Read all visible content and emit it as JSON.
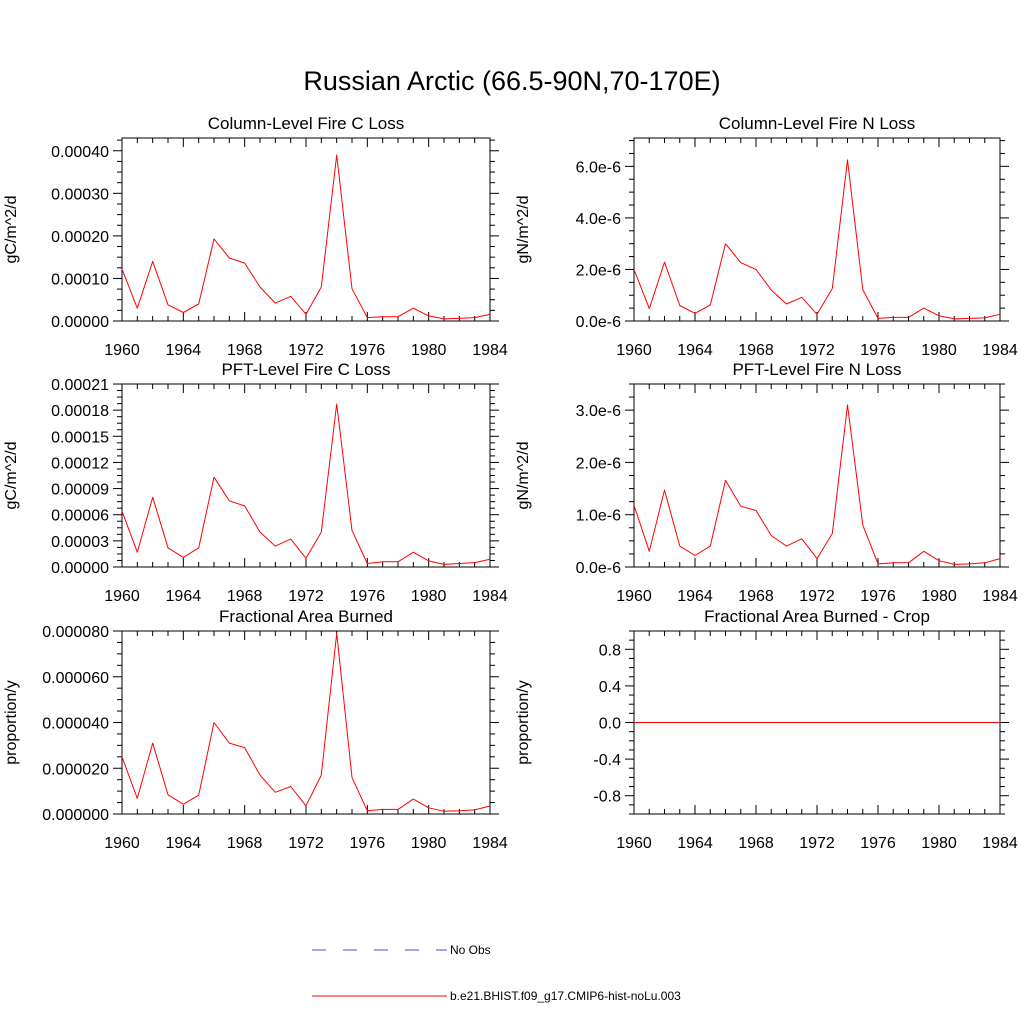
{
  "figure": {
    "title": "Russian Arctic (66.5-90N,70-170E)"
  },
  "colors": {
    "model": "#ff0000",
    "obs": "#4a4ad0",
    "axes": "#000000"
  },
  "legend": {
    "entries": [
      {
        "label": "No Obs",
        "style": "dashed",
        "color": "#4a4ad0"
      },
      {
        "label": "b.e21.BHIST.f09_g17.CMIP6-hist-noLu.003",
        "style": "solid",
        "color": "#ff0000"
      }
    ]
  },
  "chart_data": [
    {
      "type": "line",
      "title": "Column-Level Fire C Loss",
      "xlabel": "",
      "ylabel": "gC/m^2/d",
      "xlim": [
        1960,
        1984
      ],
      "ylim": [
        0,
        0.00043
      ],
      "x_ticks": [
        "1960",
        "1964",
        "1968",
        "1972",
        "1976",
        "1980",
        "1984"
      ],
      "y_ticks": [
        {
          "value": 0.0,
          "label": "0.00000"
        },
        {
          "value": 0.0001,
          "label": "0.00010"
        },
        {
          "value": 0.0002,
          "label": "0.00020"
        },
        {
          "value": 0.0003,
          "label": "0.00030"
        },
        {
          "value": 0.0004,
          "label": "0.00040"
        }
      ],
      "series": [
        {
          "name": "b.e21.BHIST.f09_g17.CMIP6-hist-noLu.003",
          "x": [
            1960,
            1961,
            1962,
            1963,
            1964,
            1965,
            1966,
            1967,
            1968,
            1969,
            1970,
            1971,
            1972,
            1973,
            1974,
            1975,
            1976,
            1977,
            1978,
            1979,
            1980,
            1981,
            1982,
            1983,
            1984
          ],
          "values": [
            0.000122,
            3e-05,
            0.00014,
            3.8e-05,
            2e-05,
            4e-05,
            0.000193,
            0.000148,
            0.000136,
            8e-05,
            4.2e-05,
            5.8e-05,
            1.6e-05,
            8e-05,
            0.00039,
            7.6e-05,
            8e-06,
            1e-05,
            1e-05,
            3e-05,
            1.2e-05,
            5e-06,
            6e-06,
            8e-06,
            1.6e-05
          ]
        }
      ]
    },
    {
      "type": "line",
      "title": "Column-Level Fire N Loss",
      "xlabel": "",
      "ylabel": "gN/m^2/d",
      "xlim": [
        1960,
        1984
      ],
      "ylim": [
        0,
        7.1e-06
      ],
      "x_ticks": [
        "1960",
        "1964",
        "1968",
        "1972",
        "1976",
        "1980",
        "1984"
      ],
      "y_ticks": [
        {
          "value": 0.0,
          "label": "0.0e-6"
        },
        {
          "value": 2e-06,
          "label": "2.0e-6"
        },
        {
          "value": 4e-06,
          "label": "4.0e-6"
        },
        {
          "value": 6e-06,
          "label": "6.0e-6"
        }
      ],
      "series": [
        {
          "name": "b.e21.BHIST.f09_g17.CMIP6-hist-noLu.003",
          "x": [
            1960,
            1961,
            1962,
            1963,
            1964,
            1965,
            1966,
            1967,
            1968,
            1969,
            1970,
            1971,
            1972,
            1973,
            1974,
            1975,
            1976,
            1977,
            1978,
            1979,
            1980,
            1981,
            1982,
            1983,
            1984
          ],
          "values": [
            2e-06,
            4.8e-07,
            2.28e-06,
            6e-07,
            3e-07,
            6.2e-07,
            3e-06,
            2.26e-06,
            2e-06,
            1.2e-06,
            6.6e-07,
            9.2e-07,
            2.6e-07,
            1.26e-06,
            6.25e-06,
            1.22e-06,
            1e-07,
            1.4e-07,
            1.4e-07,
            5e-07,
            2e-07,
            8e-08,
            1e-07,
            1.2e-07,
            2.6e-07
          ]
        }
      ]
    },
    {
      "type": "line",
      "title": "PFT-Level Fire C Loss",
      "xlabel": "",
      "ylabel": "gC/m^2/d",
      "xlim": [
        1960,
        1984
      ],
      "ylim": [
        0,
        0.00021
      ],
      "x_ticks": [
        "1960",
        "1964",
        "1968",
        "1972",
        "1976",
        "1980",
        "1984"
      ],
      "y_ticks": [
        {
          "value": 0.0,
          "label": "0.00000"
        },
        {
          "value": 3e-05,
          "label": "0.00003"
        },
        {
          "value": 6e-05,
          "label": "0.00006"
        },
        {
          "value": 9e-05,
          "label": "0.00009"
        },
        {
          "value": 0.00012,
          "label": "0.00012"
        },
        {
          "value": 0.00015,
          "label": "0.00015"
        },
        {
          "value": 0.00018,
          "label": "0.00018"
        },
        {
          "value": 0.00021,
          "label": "0.00021"
        }
      ],
      "series": [
        {
          "name": "b.e21.BHIST.f09_g17.CMIP6-hist-noLu.003",
          "x": [
            1960,
            1961,
            1962,
            1963,
            1964,
            1965,
            1966,
            1967,
            1968,
            1969,
            1970,
            1971,
            1972,
            1973,
            1974,
            1975,
            1976,
            1977,
            1978,
            1979,
            1980,
            1981,
            1982,
            1983,
            1984
          ],
          "values": [
            6.4e-05,
            1.7e-05,
            8e-05,
            2.2e-05,
            1.1e-05,
            2.2e-05,
            0.000103,
            7.6e-05,
            7e-05,
            4e-05,
            2.4e-05,
            3.2e-05,
            1e-05,
            4e-05,
            0.000187,
            4.2e-05,
            4e-06,
            6e-06,
            6e-06,
            1.7e-05,
            7e-06,
            3e-06,
            4e-06,
            5e-06,
            9e-06
          ]
        }
      ]
    },
    {
      "type": "line",
      "title": "PFT-Level Fire N Loss",
      "xlabel": "",
      "ylabel": "gN/m^2/d",
      "xlim": [
        1960,
        1984
      ],
      "ylim": [
        0,
        3.5e-06
      ],
      "x_ticks": [
        "1960",
        "1964",
        "1968",
        "1972",
        "1976",
        "1980",
        "1984"
      ],
      "y_ticks": [
        {
          "value": 0.0,
          "label": "0.0e-6"
        },
        {
          "value": 1e-06,
          "label": "1.0e-6"
        },
        {
          "value": 2e-06,
          "label": "2.0e-6"
        },
        {
          "value": 3e-06,
          "label": "3.0e-6"
        }
      ],
      "series": [
        {
          "name": "b.e21.BHIST.f09_g17.CMIP6-hist-noLu.003",
          "x": [
            1960,
            1961,
            1962,
            1963,
            1964,
            1965,
            1966,
            1967,
            1968,
            1969,
            1970,
            1971,
            1972,
            1973,
            1974,
            1975,
            1976,
            1977,
            1978,
            1979,
            1980,
            1981,
            1982,
            1983,
            1984
          ],
          "values": [
            1.18e-06,
            3e-07,
            1.47e-06,
            4e-07,
            2.2e-07,
            4e-07,
            1.66e-06,
            1.16e-06,
            1.08e-06,
            6e-07,
            4e-07,
            5.4e-07,
            1.6e-07,
            6.4e-07,
            3.1e-06,
            8e-07,
            6e-08,
            8e-08,
            8e-08,
            3e-07,
            1.2e-07,
            5e-08,
            6e-08,
            8e-08,
            1.6e-07
          ]
        }
      ]
    },
    {
      "type": "line",
      "title": "Fractional Area Burned",
      "xlabel": "",
      "ylabel": "proportion/y",
      "xlim": [
        1960,
        1984
      ],
      "ylim": [
        0,
        8e-05
      ],
      "x_ticks": [
        "1960",
        "1964",
        "1968",
        "1972",
        "1976",
        "1980",
        "1984"
      ],
      "y_ticks": [
        {
          "value": 0.0,
          "label": "0.000000"
        },
        {
          "value": 2e-05,
          "label": "0.000020"
        },
        {
          "value": 4e-05,
          "label": "0.000040"
        },
        {
          "value": 6e-05,
          "label": "0.000060"
        },
        {
          "value": 8e-05,
          "label": "0.000080"
        }
      ],
      "series": [
        {
          "name": "b.e21.BHIST.f09_g17.CMIP6-hist-noLu.003",
          "x": [
            1960,
            1961,
            1962,
            1963,
            1964,
            1965,
            1966,
            1967,
            1968,
            1969,
            1970,
            1971,
            1972,
            1973,
            1974,
            1975,
            1976,
            1977,
            1978,
            1979,
            1980,
            1981,
            1982,
            1983,
            1984
          ],
          "values": [
            2.5e-05,
            6.8e-06,
            3.1e-05,
            8.4e-06,
            4.3e-06,
            8.2e-06,
            4e-05,
            3.1e-05,
            2.9e-05,
            1.7e-05,
            9.5e-06,
            1.2e-05,
            3.6e-06,
            1.7e-05,
            7.9e-05,
            1.6e-05,
            1.4e-06,
            2e-06,
            2e-06,
            6.5e-06,
            2.7e-06,
            1.2e-06,
            1.4e-06,
            1.8e-06,
            3.5e-06
          ]
        }
      ]
    },
    {
      "type": "line",
      "title": "Fractional Area Burned - Crop",
      "xlabel": "",
      "ylabel": "proportion/y",
      "xlim": [
        1960,
        1984
      ],
      "ylim": [
        -1.0,
        1.0
      ],
      "x_ticks": [
        "1960",
        "1964",
        "1968",
        "1972",
        "1976",
        "1980",
        "1984"
      ],
      "y_ticks": [
        {
          "value": -0.8,
          "label": "-0.8"
        },
        {
          "value": -0.4,
          "label": "-0.4"
        },
        {
          "value": 0.0,
          "label": "0.0"
        },
        {
          "value": 0.4,
          "label": "0.4"
        },
        {
          "value": 0.8,
          "label": "0.8"
        }
      ],
      "series": [
        {
          "name": "b.e21.BHIST.f09_g17.CMIP6-hist-noLu.003",
          "x": [
            1960,
            1961,
            1962,
            1963,
            1964,
            1965,
            1966,
            1967,
            1968,
            1969,
            1970,
            1971,
            1972,
            1973,
            1974,
            1975,
            1976,
            1977,
            1978,
            1979,
            1980,
            1981,
            1982,
            1983,
            1984
          ],
          "values": [
            0,
            0,
            0,
            0,
            0,
            0,
            0,
            0,
            0,
            0,
            0,
            0,
            0,
            0,
            0,
            0,
            0,
            0,
            0,
            0,
            0,
            0,
            0,
            0,
            0
          ]
        }
      ]
    }
  ]
}
